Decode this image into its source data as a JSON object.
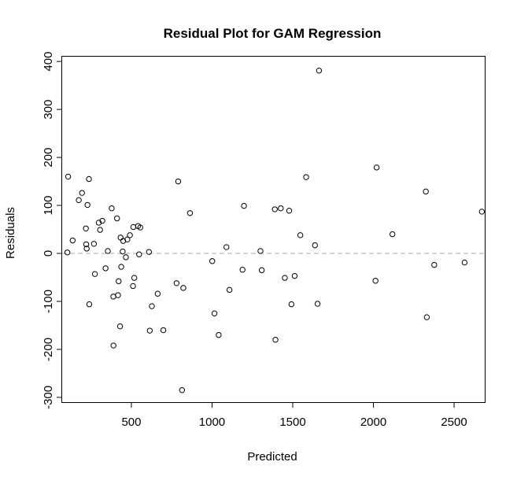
{
  "chart_data": {
    "type": "scatter",
    "title": "Residual Plot for GAM Regression",
    "xlabel": "Predicted",
    "ylabel": "Residuals",
    "xlim": [
      71,
      2690
    ],
    "ylim": [
      -310,
      410
    ],
    "x_ticks": [
      500,
      1000,
      1500,
      2000,
      2500
    ],
    "y_ticks": [
      -300,
      -200,
      -100,
      0,
      100,
      200,
      300,
      400
    ],
    "reference_line": {
      "y": 0,
      "style": "dashed",
      "color": "#aaaaaa"
    },
    "grid": false,
    "legend": "none",
    "point_color": "#000000",
    "points": [
      {
        "x": 108,
        "y": 160
      },
      {
        "x": 103,
        "y": 2
      },
      {
        "x": 136,
        "y": 27
      },
      {
        "x": 174,
        "y": 111
      },
      {
        "x": 194,
        "y": 126
      },
      {
        "x": 218,
        "y": 52
      },
      {
        "x": 220,
        "y": 19
      },
      {
        "x": 223,
        "y": 10
      },
      {
        "x": 228,
        "y": 101
      },
      {
        "x": 237,
        "y": 155
      },
      {
        "x": 239,
        "y": -106
      },
      {
        "x": 268,
        "y": 20
      },
      {
        "x": 274,
        "y": -43
      },
      {
        "x": 298,
        "y": 64
      },
      {
        "x": 306,
        "y": 49
      },
      {
        "x": 320,
        "y": 68
      },
      {
        "x": 340,
        "y": -31
      },
      {
        "x": 354,
        "y": 5
      },
      {
        "x": 378,
        "y": 94
      },
      {
        "x": 388,
        "y": -90
      },
      {
        "x": 389,
        "y": -192
      },
      {
        "x": 411,
        "y": 73
      },
      {
        "x": 417,
        "y": -87
      },
      {
        "x": 421,
        "y": -58
      },
      {
        "x": 430,
        "y": -152
      },
      {
        "x": 433,
        "y": 33
      },
      {
        "x": 437,
        "y": -28
      },
      {
        "x": 446,
        "y": 4
      },
      {
        "x": 449,
        "y": 26
      },
      {
        "x": 466,
        "y": -8
      },
      {
        "x": 475,
        "y": 29
      },
      {
        "x": 491,
        "y": 38
      },
      {
        "x": 510,
        "y": -68
      },
      {
        "x": 512,
        "y": 55
      },
      {
        "x": 518,
        "y": -51
      },
      {
        "x": 541,
        "y": 57
      },
      {
        "x": 548,
        "y": -2
      },
      {
        "x": 555,
        "y": 54
      },
      {
        "x": 609,
        "y": 3
      },
      {
        "x": 614,
        "y": -161
      },
      {
        "x": 627,
        "y": -110
      },
      {
        "x": 663,
        "y": -84
      },
      {
        "x": 698,
        "y": -160
      },
      {
        "x": 780,
        "y": -62
      },
      {
        "x": 790,
        "y": 150
      },
      {
        "x": 814,
        "y": -285
      },
      {
        "x": 822,
        "y": -72
      },
      {
        "x": 863,
        "y": 84
      },
      {
        "x": 1001,
        "y": -16
      },
      {
        "x": 1015,
        "y": -125
      },
      {
        "x": 1041,
        "y": -170
      },
      {
        "x": 1089,
        "y": 13
      },
      {
        "x": 1108,
        "y": -76
      },
      {
        "x": 1189,
        "y": -34
      },
      {
        "x": 1198,
        "y": 99
      },
      {
        "x": 1300,
        "y": 5
      },
      {
        "x": 1308,
        "y": -35
      },
      {
        "x": 1389,
        "y": 92
      },
      {
        "x": 1393,
        "y": -180
      },
      {
        "x": 1426,
        "y": 94
      },
      {
        "x": 1451,
        "y": -51
      },
      {
        "x": 1478,
        "y": 89
      },
      {
        "x": 1492,
        "y": -106
      },
      {
        "x": 1512,
        "y": -47
      },
      {
        "x": 1547,
        "y": 38
      },
      {
        "x": 1583,
        "y": 159
      },
      {
        "x": 1638,
        "y": 17
      },
      {
        "x": 1654,
        "y": -105
      },
      {
        "x": 1663,
        "y": 381
      },
      {
        "x": 2013,
        "y": -57
      },
      {
        "x": 2020,
        "y": 179
      },
      {
        "x": 2118,
        "y": 40
      },
      {
        "x": 2325,
        "y": 129
      },
      {
        "x": 2331,
        "y": -133
      },
      {
        "x": 2377,
        "y": -24
      },
      {
        "x": 2565,
        "y": -19
      },
      {
        "x": 2672,
        "y": 87
      }
    ]
  }
}
